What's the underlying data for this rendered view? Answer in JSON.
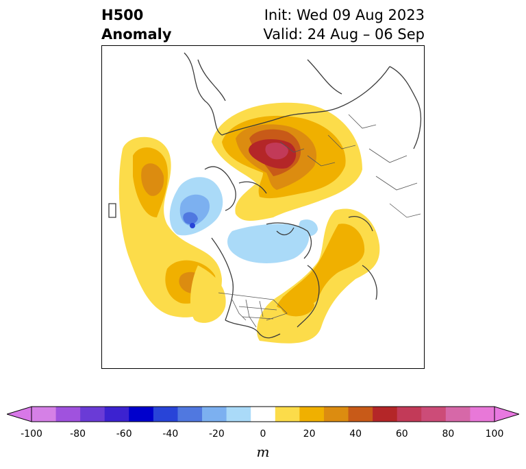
{
  "title": {
    "left_line1": "H500",
    "left_line2": "Anomaly",
    "right_line1": "Init: Wed 09 Aug 2023",
    "right_line2": "Valid: 24 Aug – 06 Sep"
  },
  "map": {
    "projection": "polar stereographic (North Pole)",
    "features": [
      "coastlines",
      "country borders",
      "US state borders"
    ],
    "anomaly_centers": [
      {
        "region": "Arctic / northern Russia",
        "sign": "positive",
        "max_m": 70
      },
      {
        "region": "North Pacific (off Japan)",
        "sign": "positive",
        "max_m": 40
      },
      {
        "region": "Northeast Pacific / Gulf of Alaska",
        "sign": "positive",
        "max_m": 40
      },
      {
        "region": "Western US",
        "sign": "positive",
        "max_m": 20
      },
      {
        "region": "Eastern US / Canada",
        "sign": "positive",
        "max_m": 20
      },
      {
        "region": "North Atlantic",
        "sign": "positive",
        "max_m": 30
      },
      {
        "region": "Siberia / East Asia",
        "sign": "negative",
        "min_m": -40
      },
      {
        "region": "Canadian Arctic",
        "sign": "negative",
        "min_m": -20
      }
    ]
  },
  "colorbar": {
    "unit": "m",
    "levels": [
      -100,
      -90,
      -80,
      -70,
      -60,
      -50,
      -40,
      -30,
      -20,
      -10,
      10,
      20,
      30,
      40,
      50,
      60,
      70,
      80,
      90,
      100
    ],
    "ticks": [
      "-100",
      "-80",
      "-60",
      "-40",
      "-20",
      "0",
      "20",
      "40",
      "60",
      "80",
      "100"
    ],
    "colors": [
      "#d580e6",
      "#a052de",
      "#6a3bd6",
      "#3c22d0",
      "#0000cc",
      "#2844d8",
      "#5078e0",
      "#7cb0f0",
      "#aadaf8",
      "#ffffff",
      "#fcdc4a",
      "#f0b000",
      "#dc8c10",
      "#c85a18",
      "#b42628",
      "#c23a58",
      "#cc4c78",
      "#d668a8",
      "#e878d8"
    ],
    "extend_low": "#d878e8",
    "extend_high": "#e878e0"
  }
}
